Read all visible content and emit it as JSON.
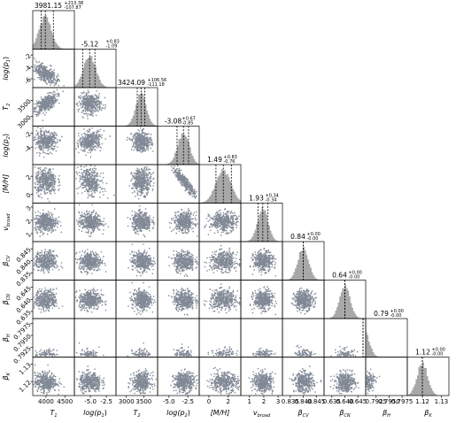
{
  "chart_data": {
    "type": "corner",
    "parameters": [
      {
        "label": "T",
        "sub": "1",
        "suffix": "",
        "median": 3981.15,
        "plus": {
          "value": 213.38,
          "label": "+213.38"
        },
        "minus": -107.87,
        "xlim": [
          3650,
          4750
        ],
        "ylim": [
          3650,
          4750
        ],
        "xticks": [
          4000,
          4500
        ],
        "yticks": []
      },
      {
        "label": "log(p",
        "sub": "1",
        "suffix": ")",
        "median": -5.12,
        "plus": {
          "value": 0.83,
          "label": "+0.83"
        },
        "minus": -1.09,
        "xlim": [
          -7.5,
          -1
        ],
        "ylim": [
          -7.5,
          -1
        ],
        "xticks": [
          {
            "value": -5,
            "label": "-5.0"
          },
          {
            "value": -2.5,
            "label": "-2.5"
          }
        ],
        "yticks": [
          -6,
          -4,
          -2
        ]
      },
      {
        "label": "T",
        "sub": "2",
        "suffix": "",
        "median": 3424.09,
        "plus": {
          "value": 106.56,
          "label": "+106.56"
        },
        "minus": -111.18,
        "xlim": [
          2700,
          3900
        ],
        "ylim": [
          2700,
          3900
        ],
        "xticks": [
          3000,
          3500
        ],
        "yticks": [
          3000,
          3500
        ]
      },
      {
        "label": "log(p",
        "sub": "2",
        "suffix": ")",
        "median": -3.08,
        "plus": {
          "value": 0.67,
          "label": "+0.67"
        },
        "minus": -0.85,
        "xlim": [
          -6.5,
          -1
        ],
        "ylim": [
          -6.5,
          -1
        ],
        "xticks": [
          {
            "value": -5,
            "label": "-5.0"
          },
          {
            "value": -2.5,
            "label": "-2.5"
          }
        ],
        "yticks": [
          -4,
          -2
        ]
      },
      {
        "label": "[M/H]",
        "sub": "",
        "suffix": "",
        "median": 1.49,
        "plus": {
          "value": 0.83,
          "label": "+0.83"
        },
        "minus": -0.76,
        "xlim": [
          -1,
          3.3
        ],
        "ylim": [
          -1,
          3.3
        ],
        "xticks": [
          0,
          2
        ],
        "yticks": [
          0,
          2
        ]
      },
      {
        "label": "v",
        "sub": "broad",
        "suffix": "",
        "median": 1.93,
        "plus": {
          "value": 0.34,
          "label": "+0.34"
        },
        "minus": -0.34,
        "xlim": [
          0.4,
          3.3
        ],
        "ylim": [
          0.4,
          3.3
        ],
        "xticks": [
          1,
          2,
          3
        ],
        "yticks": [
          1,
          2,
          3
        ]
      },
      {
        "label": "β",
        "sub": "CV",
        "suffix": "",
        "median": 0.84,
        "plus": {
          "value": 0,
          "label": "+0.00"
        },
        "minus": {
          "value": 0,
          "label": "-0.00"
        },
        "xlim": [
          0.832,
          0.848
        ],
        "ylim": [
          0.832,
          0.848
        ],
        "xticks": [
          {
            "value": 0.835,
            "label": "0.835"
          },
          {
            "value": 0.84,
            "label": "0.840"
          },
          {
            "value": 0.845,
            "label": "0.845"
          }
        ],
        "yticks": [
          {
            "value": 0.835,
            "label": "0.835"
          },
          {
            "value": 0.84,
            "label": "0.840"
          },
          {
            "value": 0.845,
            "label": "0.845"
          }
        ]
      },
      {
        "label": "β",
        "sub": "CN",
        "suffix": "",
        "median": 0.64,
        "plus": {
          "value": 0,
          "label": "+0.00"
        },
        "minus": {
          "value": 0,
          "label": "-0.00"
        },
        "xlim": [
          0.632,
          0.648
        ],
        "ylim": [
          0.632,
          0.648
        ],
        "xticks": [
          {
            "value": 0.635,
            "label": "0.635"
          },
          {
            "value": 0.64,
            "label": "0.640"
          },
          {
            "value": 0.645,
            "label": "0.645"
          }
        ],
        "yticks": [
          {
            "value": 0.635,
            "label": "0.635"
          },
          {
            "value": 0.64,
            "label": "0.640"
          },
          {
            "value": 0.645,
            "label": "0.645"
          }
        ]
      },
      {
        "label": "β",
        "sub": "H",
        "suffix": "",
        "median": 0.79,
        "plus": {
          "value": 0,
          "label": "+0.00"
        },
        "minus": {
          "value": 0,
          "label": "-0.00"
        },
        "xlim": [
          0.7905,
          0.7985
        ],
        "ylim": [
          0.7905,
          0.7985
        ],
        "xticks": [
          {
            "value": 0.7925,
            "label": "0.7925"
          },
          {
            "value": 0.795,
            "label": "0.7950"
          },
          {
            "value": 0.7975,
            "label": "0.7975"
          }
        ],
        "yticks": [
          {
            "value": 0.7925,
            "label": "0.7925"
          },
          {
            "value": 0.795,
            "label": "0.7950"
          },
          {
            "value": 0.7975,
            "label": "0.7975"
          }
        ]
      },
      {
        "label": "β",
        "sub": "K",
        "suffix": "",
        "median": 1.12,
        "plus": {
          "value": 0,
          "label": "+0.00"
        },
        "minus": {
          "value": 0,
          "label": "-0.00"
        },
        "xlim": [
          1.112,
          1.134
        ],
        "ylim": [
          1.112,
          1.134
        ],
        "xticks": [
          1.12,
          1.13
        ],
        "yticks": [
          1.12,
          1.13
        ]
      }
    ]
  }
}
